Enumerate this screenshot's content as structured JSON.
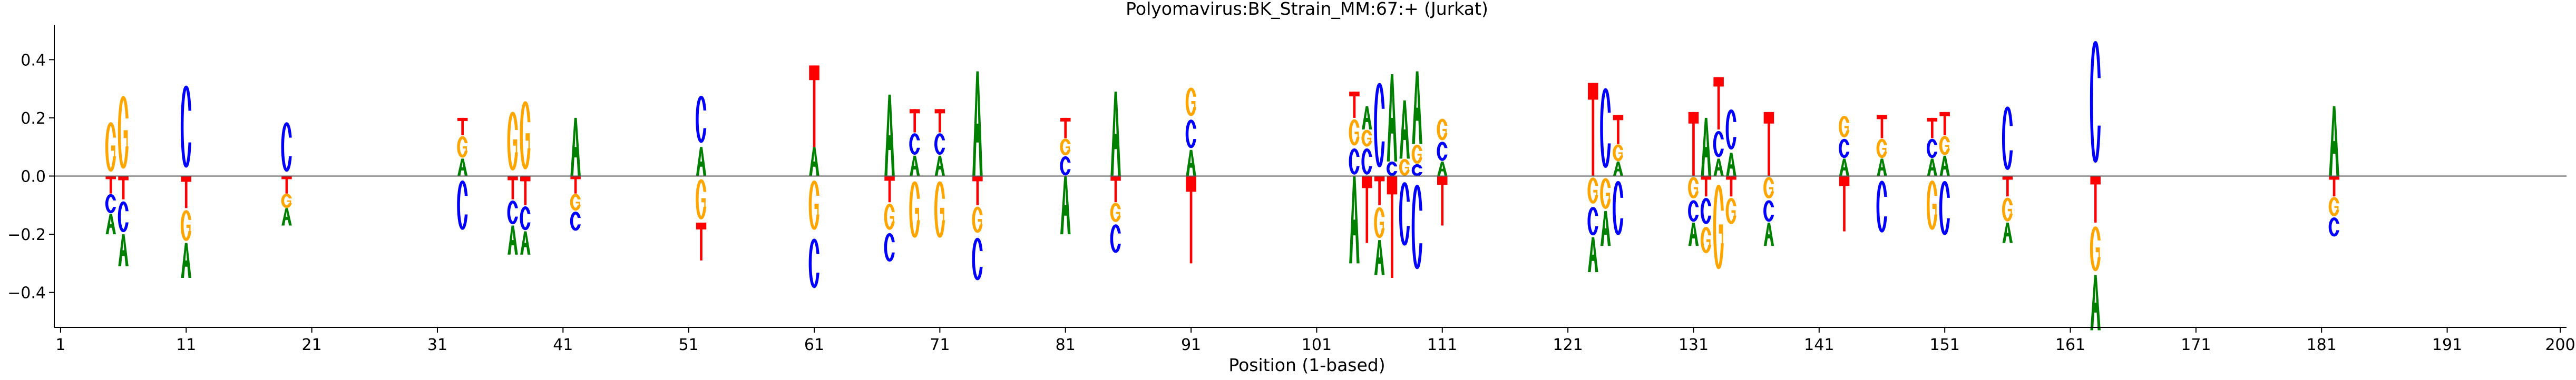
{
  "chart_data": {
    "type": "sequence-logo",
    "title": "Polyomavirus:BK_Strain_MM:67:+  (Jurkat)",
    "xlabel": "Position (1-based)",
    "ylabel": "",
    "xlim": [
      0.5,
      200.5
    ],
    "ylim": [
      -0.52,
      0.52
    ],
    "x_ticks": [
      1,
      11,
      21,
      31,
      41,
      51,
      61,
      71,
      81,
      91,
      101,
      111,
      121,
      131,
      141,
      151,
      161,
      171,
      181,
      191,
      200
    ],
    "y_ticks": [
      -0.4,
      -0.2,
      0.0,
      0.2,
      0.4
    ],
    "y_tick_labels": [
      "−0.4",
      "−0.2",
      "0.0",
      "0.2",
      "0.4"
    ],
    "zero_line": true,
    "grid": false,
    "colors": {
      "A": "#008000",
      "C": "#0000ff",
      "G": "#ffa500",
      "T": "#ff0000"
    },
    "columns": [
      {
        "pos": 5,
        "up": [
          [
            "G",
            0.2
          ]
        ],
        "down": [
          [
            "T",
            0.06
          ],
          [
            "C",
            0.07
          ],
          [
            "A",
            0.07
          ]
        ]
      },
      {
        "pos": 6,
        "up": [
          [
            "G",
            0.3
          ]
        ],
        "down": [
          [
            "T",
            0.08
          ],
          [
            "C",
            0.12
          ],
          [
            "A",
            0.11
          ]
        ]
      },
      {
        "pos": 11,
        "up": [
          [
            "C",
            0.34
          ]
        ],
        "down": [
          [
            "T",
            0.11
          ],
          [
            "G",
            0.12
          ],
          [
            "A",
            0.12
          ]
        ]
      },
      {
        "pos": 19,
        "up": [
          [
            "C",
            0.2
          ]
        ],
        "down": [
          [
            "T",
            0.06
          ],
          [
            "G",
            0.05
          ],
          [
            "A",
            0.06
          ]
        ]
      },
      {
        "pos": 33,
        "up": [
          [
            "A",
            0.06
          ],
          [
            "G",
            0.08
          ],
          [
            "T",
            0.06
          ]
        ],
        "down": [
          [
            "C",
            0.2
          ]
        ]
      },
      {
        "pos": 37,
        "up": [
          [
            "G",
            0.24
          ]
        ],
        "down": [
          [
            "T",
            0.08
          ],
          [
            "C",
            0.09
          ],
          [
            "A",
            0.1
          ]
        ]
      },
      {
        "pos": 38,
        "up": [
          [
            "G",
            0.28
          ]
        ],
        "down": [
          [
            "T",
            0.1
          ],
          [
            "C",
            0.09
          ],
          [
            "A",
            0.08
          ]
        ]
      },
      {
        "pos": 42,
        "up": [
          [
            "A",
            0.2
          ]
        ],
        "down": [
          [
            "T",
            0.06
          ],
          [
            "G",
            0.06
          ],
          [
            "C",
            0.07
          ]
        ]
      },
      {
        "pos": 52,
        "up": [
          [
            "A",
            0.1
          ],
          [
            "C",
            0.19
          ]
        ],
        "down": [
          [
            "G",
            0.16
          ],
          [
            "T",
            0.13
          ]
        ]
      },
      {
        "pos": 61,
        "up": [
          [
            "A",
            0.1
          ],
          [
            "T",
            0.28
          ]
        ],
        "down": [
          [
            "G",
            0.2
          ],
          [
            "C",
            0.2
          ]
        ]
      },
      {
        "pos": 67,
        "up": [
          [
            "A",
            0.28
          ]
        ],
        "down": [
          [
            "T",
            0.09
          ],
          [
            "G",
            0.1
          ],
          [
            "C",
            0.11
          ]
        ]
      },
      {
        "pos": 69,
        "up": [
          [
            "A",
            0.07
          ],
          [
            "C",
            0.08
          ],
          [
            "T",
            0.08
          ]
        ],
        "down": [
          [
            "G",
            0.23
          ]
        ]
      },
      {
        "pos": 71,
        "up": [
          [
            "A",
            0.07
          ],
          [
            "C",
            0.08
          ],
          [
            "T",
            0.08
          ]
        ],
        "down": [
          [
            "G",
            0.23
          ]
        ]
      },
      {
        "pos": 74,
        "up": [
          [
            "A",
            0.36
          ]
        ],
        "down": [
          [
            "T",
            0.1
          ],
          [
            "G",
            0.1
          ],
          [
            "C",
            0.17
          ]
        ]
      },
      {
        "pos": 81,
        "up": [
          [
            "C",
            0.07
          ],
          [
            "G",
            0.06
          ],
          [
            "T",
            0.07
          ]
        ],
        "down": [
          [
            "A",
            0.2
          ]
        ]
      },
      {
        "pos": 85,
        "up": [
          [
            "A",
            0.29
          ]
        ],
        "down": [
          [
            "T",
            0.09
          ],
          [
            "G",
            0.07
          ],
          [
            "C",
            0.11
          ]
        ]
      },
      {
        "pos": 91,
        "up": [
          [
            "A",
            0.09
          ],
          [
            "C",
            0.11
          ],
          [
            "G",
            0.11
          ]
        ],
        "down": [
          [
            "T",
            0.3
          ]
        ]
      },
      {
        "pos": 104,
        "up": [
          [
            "C",
            0.1
          ],
          [
            "G",
            0.1
          ],
          [
            "T",
            0.09
          ]
        ],
        "down": [
          [
            "A",
            0.3
          ]
        ]
      },
      {
        "pos": 105,
        "up": [
          [
            "C",
            0.1
          ],
          [
            "G",
            0.06
          ],
          [
            "A",
            0.08
          ]
        ],
        "down": [
          [
            "T",
            0.23
          ]
        ]
      },
      {
        "pos": 106,
        "up": [
          [
            "C",
            0.35
          ]
        ],
        "down": [
          [
            "T",
            0.1
          ],
          [
            "G",
            0.12
          ],
          [
            "A",
            0.12
          ]
        ]
      },
      {
        "pos": 107,
        "up": [
          [
            "C",
            0.05
          ],
          [
            "A",
            0.3
          ]
        ],
        "down": [
          [
            "T",
            0.35
          ]
        ]
      },
      {
        "pos": 108,
        "up": [
          [
            "G",
            0.06
          ],
          [
            "A",
            0.2
          ]
        ],
        "down": [
          [
            "C",
            0.26
          ]
        ]
      },
      {
        "pos": 109,
        "up": [
          [
            "C",
            0.04
          ],
          [
            "G",
            0.07
          ],
          [
            "A",
            0.25
          ]
        ],
        "down": [
          [
            "C",
            0.35
          ]
        ]
      },
      {
        "pos": 111,
        "up": [
          [
            "A",
            0.05
          ],
          [
            "C",
            0.07
          ],
          [
            "G",
            0.08
          ]
        ],
        "down": [
          [
            "T",
            0.17
          ]
        ]
      },
      {
        "pos": 123,
        "up": [
          [
            "T",
            0.32
          ]
        ],
        "down": [
          [
            "G",
            0.1
          ],
          [
            "C",
            0.11
          ],
          [
            "A",
            0.12
          ]
        ]
      },
      {
        "pos": 124,
        "up": [
          [
            "C",
            0.33
          ]
        ],
        "down": [
          [
            "G",
            0.12
          ],
          [
            "A",
            0.12
          ]
        ]
      },
      {
        "pos": 125,
        "up": [
          [
            "A",
            0.05
          ],
          [
            "G",
            0.06
          ],
          [
            "T",
            0.1
          ]
        ],
        "down": [
          [
            "C",
            0.22
          ]
        ]
      },
      {
        "pos": 131,
        "up": [
          [
            "T",
            0.22
          ]
        ],
        "down": [
          [
            "G",
            0.08
          ],
          [
            "C",
            0.08
          ],
          [
            "A",
            0.08
          ]
        ]
      },
      {
        "pos": 132,
        "up": [
          [
            "A",
            0.2
          ]
        ],
        "down": [
          [
            "T",
            0.07
          ],
          [
            "C",
            0.1
          ],
          [
            "G",
            0.1
          ]
        ]
      },
      {
        "pos": 133,
        "up": [
          [
            "A",
            0.06
          ],
          [
            "C",
            0.1
          ],
          [
            "T",
            0.18
          ]
        ],
        "down": [
          [
            "G",
            0.35
          ]
        ]
      },
      {
        "pos": 134,
        "up": [
          [
            "A",
            0.08
          ],
          [
            "C",
            0.16
          ]
        ],
        "down": [
          [
            "T",
            0.07
          ],
          [
            "G",
            0.1
          ]
        ]
      },
      {
        "pos": 137,
        "up": [
          [
            "T",
            0.22
          ]
        ],
        "down": [
          [
            "G",
            0.08
          ],
          [
            "C",
            0.08
          ],
          [
            "A",
            0.08
          ]
        ]
      },
      {
        "pos": 143,
        "up": [
          [
            "A",
            0.06
          ],
          [
            "C",
            0.07
          ],
          [
            "G",
            0.08
          ]
        ],
        "down": [
          [
            "T",
            0.19
          ]
        ]
      },
      {
        "pos": 146,
        "up": [
          [
            "A",
            0.06
          ],
          [
            "G",
            0.07
          ],
          [
            "T",
            0.08
          ]
        ],
        "down": [
          [
            "C",
            0.21
          ]
        ]
      },
      {
        "pos": 150,
        "up": [
          [
            "A",
            0.06
          ],
          [
            "C",
            0.07
          ],
          [
            "T",
            0.07
          ]
        ],
        "down": [
          [
            "G",
            0.2
          ]
        ]
      },
      {
        "pos": 151,
        "up": [
          [
            "A",
            0.07
          ],
          [
            "G",
            0.07
          ],
          [
            "T",
            0.08
          ]
        ],
        "down": [
          [
            "C",
            0.22
          ]
        ]
      },
      {
        "pos": 156,
        "up": [
          [
            "C",
            0.26
          ]
        ],
        "down": [
          [
            "T",
            0.07
          ],
          [
            "G",
            0.09
          ],
          [
            "A",
            0.07
          ]
        ]
      },
      {
        "pos": 163,
        "up": [
          [
            "C",
            0.51
          ]
        ],
        "down": [
          [
            "T",
            0.16
          ],
          [
            "G",
            0.18
          ],
          [
            "A",
            0.19
          ]
        ]
      },
      {
        "pos": 182,
        "up": [
          [
            "A",
            0.24
          ]
        ],
        "down": [
          [
            "T",
            0.07
          ],
          [
            "G",
            0.07
          ],
          [
            "C",
            0.07
          ]
        ]
      }
    ]
  }
}
